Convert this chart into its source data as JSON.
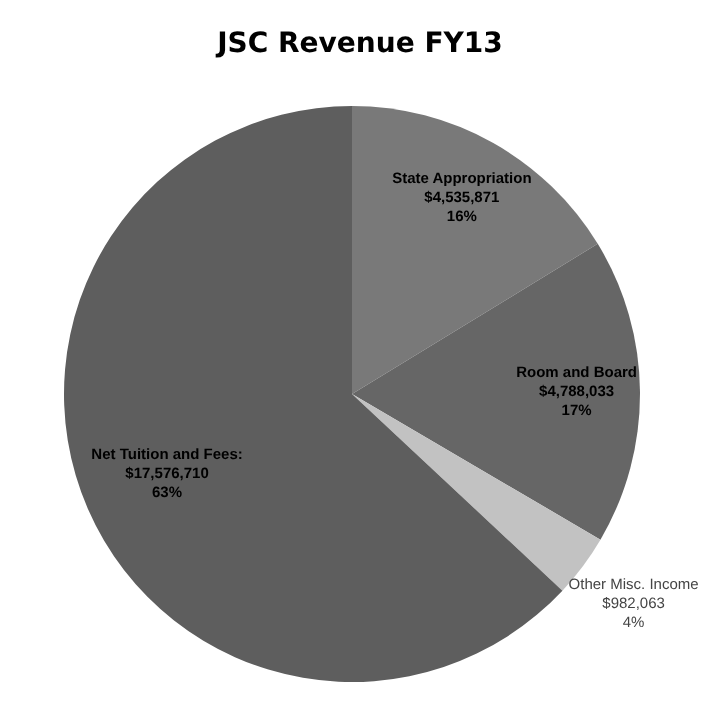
{
  "chart_data": {
    "type": "pie",
    "title": "JSC Revenue FY13",
    "categories": [
      "State Appropriation",
      "Room and Board",
      "Other Misc. Income",
      "Net Tuition and Fees"
    ],
    "values": [
      4535871,
      4788033,
      982063,
      17576710
    ],
    "value_labels": [
      "\n$4,535,871\n16%",
      "\n$4,788,033\n17%",
      "\n$982,063\n4%",
      ":\n$17,576,710\n63%"
    ],
    "colors": [
      "#797979",
      "#666666",
      "#c2c2c2",
      "#5e5e5e"
    ],
    "legend": false
  }
}
